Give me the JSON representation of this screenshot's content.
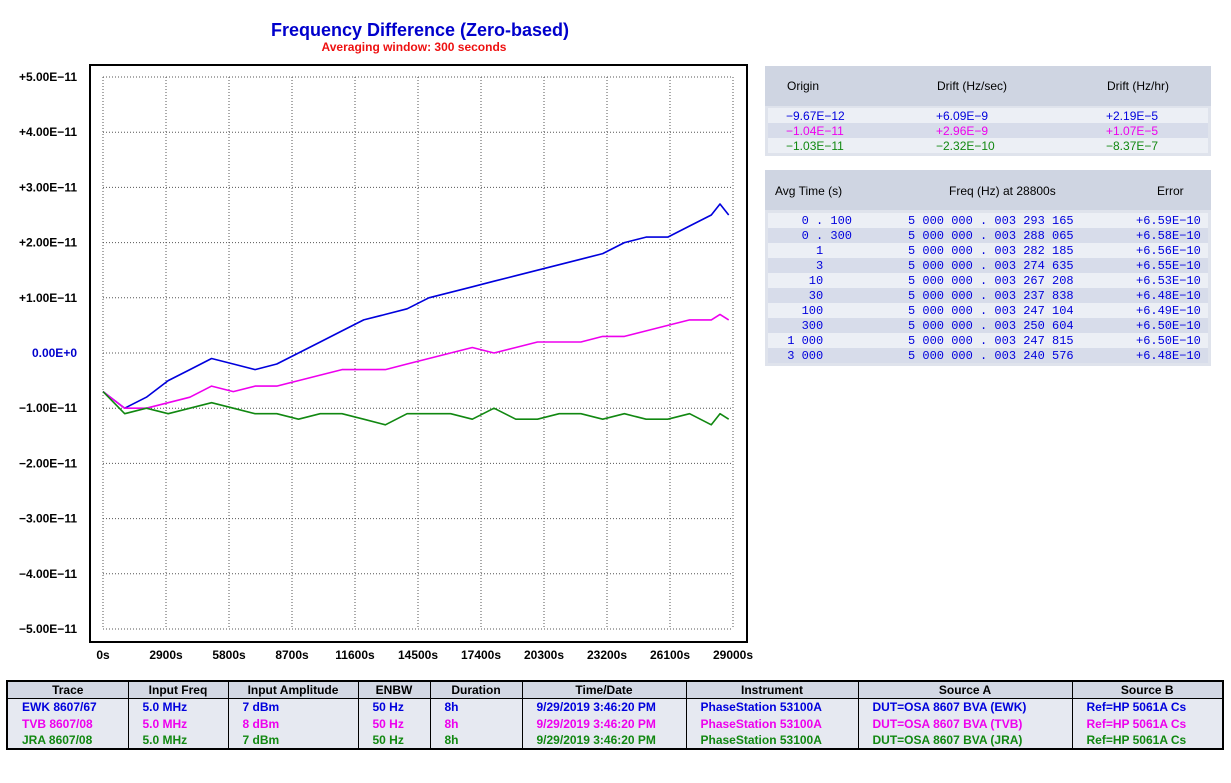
{
  "chart_data": {
    "type": "line",
    "title": "Frequency Difference (Zero-based)",
    "subtitle": "Averaging window: 300 seconds",
    "xlim": [
      0,
      29000
    ],
    "ylim": [
      -5e-11,
      5e-11
    ],
    "x_tick_labels": [
      "0s",
      "2900s",
      "5800s",
      "8700s",
      "11600s",
      "14500s",
      "17400s",
      "20300s",
      "23200s",
      "26100s",
      "29000s"
    ],
    "y_tick_labels": [
      "+5.00E−11",
      "+4.00E−11",
      "+3.00E−11",
      "+2.00E−11",
      "+1.00E−11",
      "0.00E+0",
      "−1.00E−11",
      "−2.00E−11",
      "−3.00E−11",
      "−4.00E−11",
      "−5.00E−11"
    ],
    "y_ticks": [
      5e-11,
      4e-11,
      3e-11,
      2e-11,
      1e-11,
      0,
      -1e-11,
      -2e-11,
      -3e-11,
      -4e-11,
      -5e-11
    ],
    "grid": true,
    "series": [
      {
        "name": "EWK 8607/67",
        "color": "#0000dd",
        "x": [
          0,
          1000,
          2000,
          3000,
          4000,
          5000,
          6000,
          7000,
          8000,
          9000,
          10000,
          11000,
          12000,
          13000,
          14000,
          15000,
          16000,
          17000,
          18000,
          19000,
          20000,
          21000,
          22000,
          23000,
          24000,
          25000,
          26000,
          27000,
          28000,
          28400,
          28800
        ],
        "y": [
          -7e-12,
          -1e-11,
          -8e-12,
          -5e-12,
          -3e-12,
          -1e-12,
          -2e-12,
          -3e-12,
          -2e-12,
          0,
          2e-12,
          4e-12,
          6e-12,
          7e-12,
          8e-12,
          1e-11,
          1.1e-11,
          1.2e-11,
          1.3e-11,
          1.4e-11,
          1.5e-11,
          1.6e-11,
          1.7e-11,
          1.8e-11,
          2e-11,
          2.1e-11,
          2.1e-11,
          2.3e-11,
          2.5e-11,
          2.7e-11,
          2.5e-11
        ]
      },
      {
        "name": "TVB 8607/08",
        "color": "#ee00ee",
        "x": [
          0,
          1000,
          2000,
          3000,
          4000,
          5000,
          6000,
          7000,
          8000,
          9000,
          10000,
          11000,
          12000,
          13000,
          14000,
          15000,
          16000,
          17000,
          18000,
          19000,
          20000,
          21000,
          22000,
          23000,
          24000,
          25000,
          26000,
          27000,
          28000,
          28400,
          28800
        ],
        "y": [
          -7e-12,
          -1e-11,
          -1e-11,
          -9e-12,
          -8e-12,
          -6e-12,
          -7e-12,
          -6e-12,
          -6e-12,
          -5e-12,
          -4e-12,
          -3e-12,
          -3e-12,
          -3e-12,
          -2e-12,
          -1e-12,
          0,
          1e-12,
          0,
          1e-12,
          2e-12,
          2e-12,
          2e-12,
          3e-12,
          3e-12,
          4e-12,
          5e-12,
          6e-12,
          6e-12,
          7e-12,
          6e-12
        ]
      },
      {
        "name": "JRA 8607/08",
        "color": "#118811",
        "x": [
          0,
          1000,
          2000,
          3000,
          4000,
          5000,
          6000,
          7000,
          8000,
          9000,
          10000,
          11000,
          12000,
          13000,
          14000,
          15000,
          16000,
          17000,
          18000,
          19000,
          20000,
          21000,
          22000,
          23000,
          24000,
          25000,
          26000,
          27000,
          28000,
          28400,
          28800
        ],
        "y": [
          -7e-12,
          -1.1e-11,
          -1e-11,
          -1.1e-11,
          -1e-11,
          -9e-12,
          -1e-11,
          -1.1e-11,
          -1.1e-11,
          -1.2e-11,
          -1.1e-11,
          -1.1e-11,
          -1.2e-11,
          -1.3e-11,
          -1.1e-11,
          -1.1e-11,
          -1.1e-11,
          -1.2e-11,
          -1e-11,
          -1.2e-11,
          -1.2e-11,
          -1.1e-11,
          -1.1e-11,
          -1.2e-11,
          -1.1e-11,
          -1.2e-11,
          -1.2e-11,
          -1.1e-11,
          -1.3e-11,
          -1.1e-11,
          -1.2e-11
        ]
      }
    ]
  },
  "drift_panel": {
    "headers": [
      "Origin",
      "Drift (Hz/sec)",
      "Drift (Hz/hr)"
    ],
    "rows": [
      {
        "origin": "−9.67E−12",
        "hz_sec": "+6.09E−9",
        "hz_hr": "+2.19E−5",
        "color": "#0000dd"
      },
      {
        "origin": "−1.04E−11",
        "hz_sec": "+2.96E−9",
        "hz_hr": "+1.07E−5",
        "color": "#ee00ee"
      },
      {
        "origin": "−1.03E−11",
        "hz_sec": "−2.32E−10",
        "hz_hr": "−8.37E−7",
        "color": "#118811"
      }
    ]
  },
  "avg_panel": {
    "headers": [
      "Avg Time (s)",
      "Freq (Hz) at 28800s",
      "Error"
    ],
    "color": "#0000dd",
    "rows": [
      {
        "avg": "   0 . 100",
        "freq": "5 000 000 . 003 293 165",
        "err": "+6.59E−10"
      },
      {
        "avg": "   0 . 300",
        "freq": "5 000 000 . 003 288 065",
        "err": "+6.58E−10"
      },
      {
        "avg": "     1    ",
        "freq": "5 000 000 . 003 282 185",
        "err": "+6.56E−10"
      },
      {
        "avg": "     3    ",
        "freq": "5 000 000 . 003 274 635",
        "err": "+6.55E−10"
      },
      {
        "avg": "    10    ",
        "freq": "5 000 000 . 003 267 208",
        "err": "+6.53E−10"
      },
      {
        "avg": "    30    ",
        "freq": "5 000 000 . 003 237 838",
        "err": "+6.48E−10"
      },
      {
        "avg": "   100    ",
        "freq": "5 000 000 . 003 247 104",
        "err": "+6.49E−10"
      },
      {
        "avg": "   300    ",
        "freq": "5 000 000 . 003 250 604",
        "err": "+6.50E−10"
      },
      {
        "avg": " 1 000    ",
        "freq": "5 000 000 . 003 247 815",
        "err": "+6.50E−10"
      },
      {
        "avg": " 3 000    ",
        "freq": "5 000 000 . 003 240 576",
        "err": "+6.48E−10"
      }
    ]
  },
  "trace_table": {
    "headers": [
      "Trace",
      "Input Freq",
      "Input Amplitude",
      "ENBW",
      "Duration",
      "Time/Date",
      "Instrument",
      "Source A",
      "Source B"
    ],
    "rows": [
      {
        "color": "#0000dd",
        "cells": [
          "EWK 8607/67",
          "5.0 MHz",
          "7 dBm",
          "50 Hz",
          "8h",
          "9/29/2019 3:46:20 PM",
          "PhaseStation 53100A",
          "DUT=OSA 8607 BVA (EWK)",
          "Ref=HP 5061A Cs"
        ]
      },
      {
        "color": "#ee00ee",
        "cells": [
          "TVB 8607/08",
          "5.0 MHz",
          "8 dBm",
          "50 Hz",
          "8h",
          "9/29/2019 3:46:20 PM",
          "PhaseStation 53100A",
          "DUT=OSA 8607 BVA (TVB)",
          "Ref=HP 5061A Cs"
        ]
      },
      {
        "color": "#118811",
        "cells": [
          "JRA 8607/08",
          "5.0 MHz",
          "7 dBm",
          "50 Hz",
          "8h",
          "9/29/2019 3:46:20 PM",
          "PhaseStation 53100A",
          "DUT=OSA 8607 BVA (JRA)",
          "Ref=HP 5061A Cs"
        ]
      }
    ]
  }
}
